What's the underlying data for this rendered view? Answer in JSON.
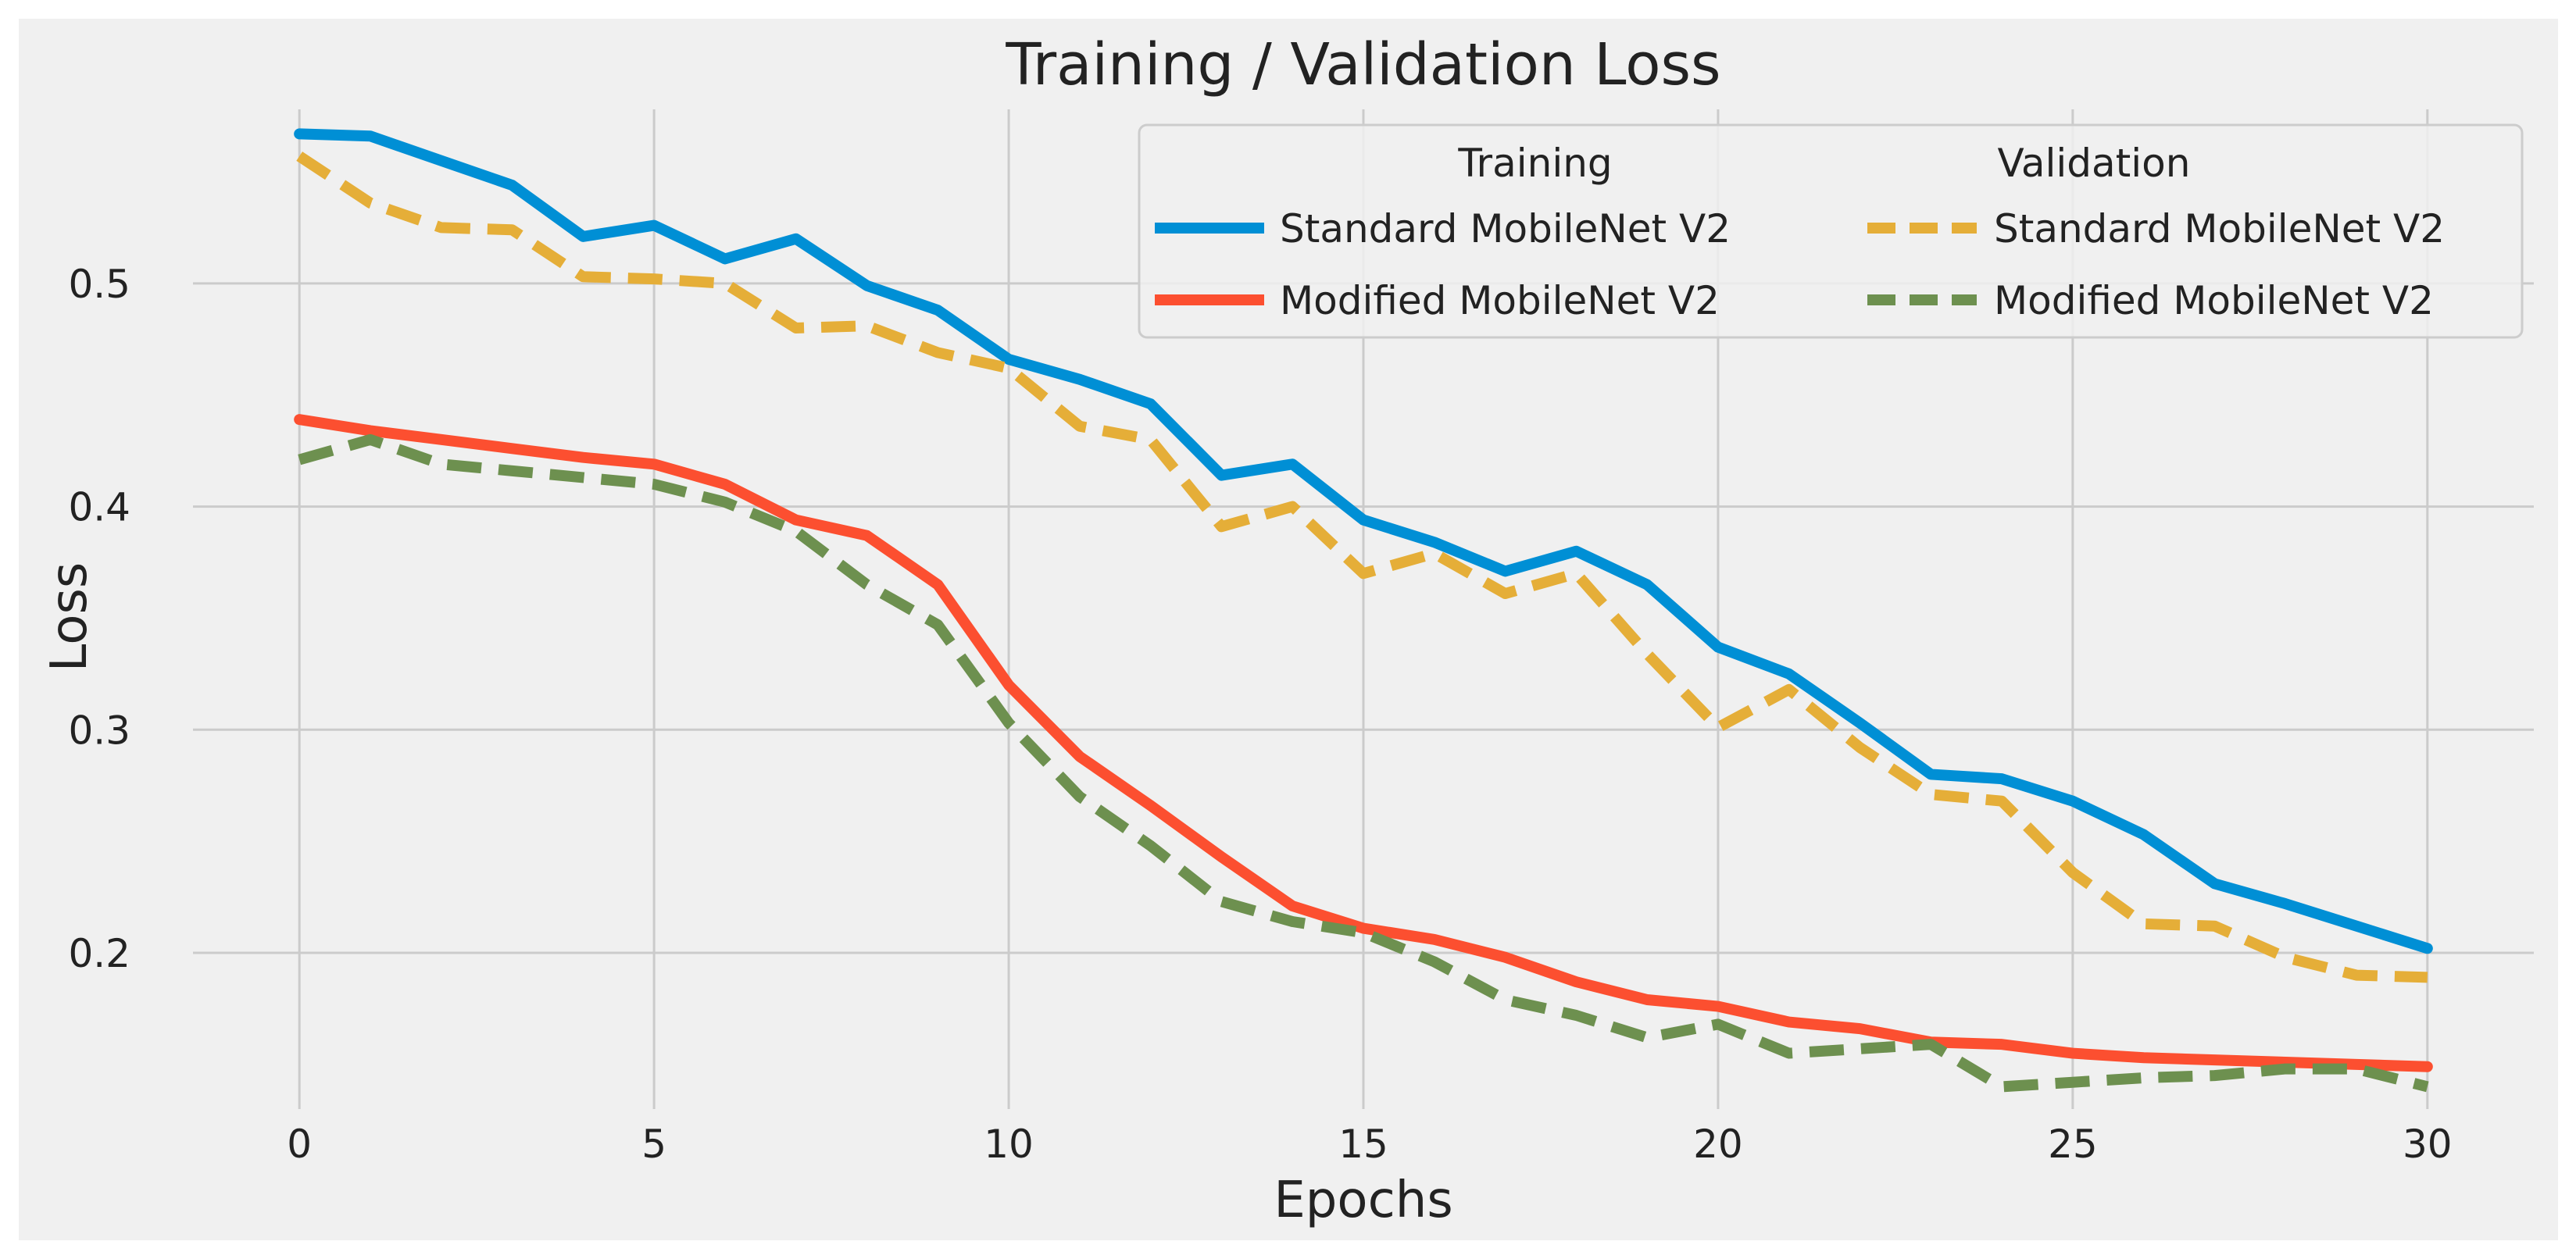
{
  "chart_data": {
    "type": "line",
    "title": "Training / Validation Loss",
    "xlabel": "Epochs",
    "ylabel": "Loss",
    "xlim": [
      -1.5,
      31.5
    ],
    "ylim": [
      0.13,
      0.578
    ],
    "x_ticks": [
      0,
      5,
      10,
      15,
      20,
      25,
      30
    ],
    "x_tick_labels": [
      "0",
      "5",
      "10",
      "15",
      "20",
      "25",
      "30"
    ],
    "y_ticks": [
      0.2,
      0.3,
      0.4,
      0.5
    ],
    "y_tick_labels": [
      "0.2",
      "0.3",
      "0.4",
      "0.5"
    ],
    "grid": true,
    "legend": {
      "position": "top-right",
      "group_titles": [
        "Training",
        "Validation"
      ]
    },
    "x": [
      0,
      1,
      2,
      3,
      4,
      5,
      6,
      7,
      8,
      9,
      10,
      11,
      12,
      13,
      14,
      15,
      16,
      17,
      18,
      19,
      20,
      21,
      22,
      23,
      24,
      25,
      26,
      27,
      28,
      29,
      30
    ],
    "series": [
      {
        "name": "Standard MobileNet V2",
        "group": "Training",
        "style": "solid",
        "color": "#008fd5",
        "values": [
          0.567,
          0.566,
          0.555,
          0.544,
          0.521,
          0.526,
          0.511,
          0.52,
          0.499,
          0.488,
          0.466,
          0.457,
          0.446,
          0.414,
          0.419,
          0.394,
          0.384,
          0.371,
          0.38,
          0.365,
          0.337,
          0.325,
          0.303,
          0.28,
          0.278,
          0.268,
          0.253,
          0.231,
          0.222,
          0.212,
          0.202
        ]
      },
      {
        "name": "Modified MobileNet V2",
        "group": "Training",
        "style": "solid",
        "color": "#fc4f30",
        "values": [
          0.439,
          0.434,
          0.43,
          0.426,
          0.422,
          0.419,
          0.41,
          0.394,
          0.387,
          0.365,
          0.32,
          0.288,
          0.266,
          0.243,
          0.221,
          0.211,
          0.206,
          0.198,
          0.187,
          0.179,
          0.176,
          0.169,
          0.166,
          0.16,
          0.159,
          0.155,
          0.153,
          0.152,
          0.151,
          0.15,
          0.149
        ]
      },
      {
        "name": "Standard MobileNet V2",
        "group": "Validation",
        "style": "dashed",
        "color": "#e5ae38",
        "values": [
          0.557,
          0.536,
          0.525,
          0.524,
          0.503,
          0.502,
          0.5,
          0.48,
          0.481,
          0.469,
          0.462,
          0.436,
          0.43,
          0.391,
          0.4,
          0.37,
          0.379,
          0.361,
          0.37,
          0.334,
          0.301,
          0.318,
          0.292,
          0.271,
          0.268,
          0.236,
          0.213,
          0.212,
          0.198,
          0.19,
          0.189
        ]
      },
      {
        "name": "Modified MobileNet V2",
        "group": "Validation",
        "style": "dashed",
        "color": "#6d904f",
        "values": [
          0.421,
          0.43,
          0.419,
          0.416,
          0.413,
          0.41,
          0.402,
          0.389,
          0.365,
          0.347,
          0.303,
          0.27,
          0.248,
          0.223,
          0.214,
          0.209,
          0.196,
          0.179,
          0.172,
          0.162,
          0.168,
          0.155,
          0.157,
          0.159,
          0.14,
          0.142,
          0.144,
          0.145,
          0.148,
          0.148,
          0.14
        ]
      }
    ]
  }
}
